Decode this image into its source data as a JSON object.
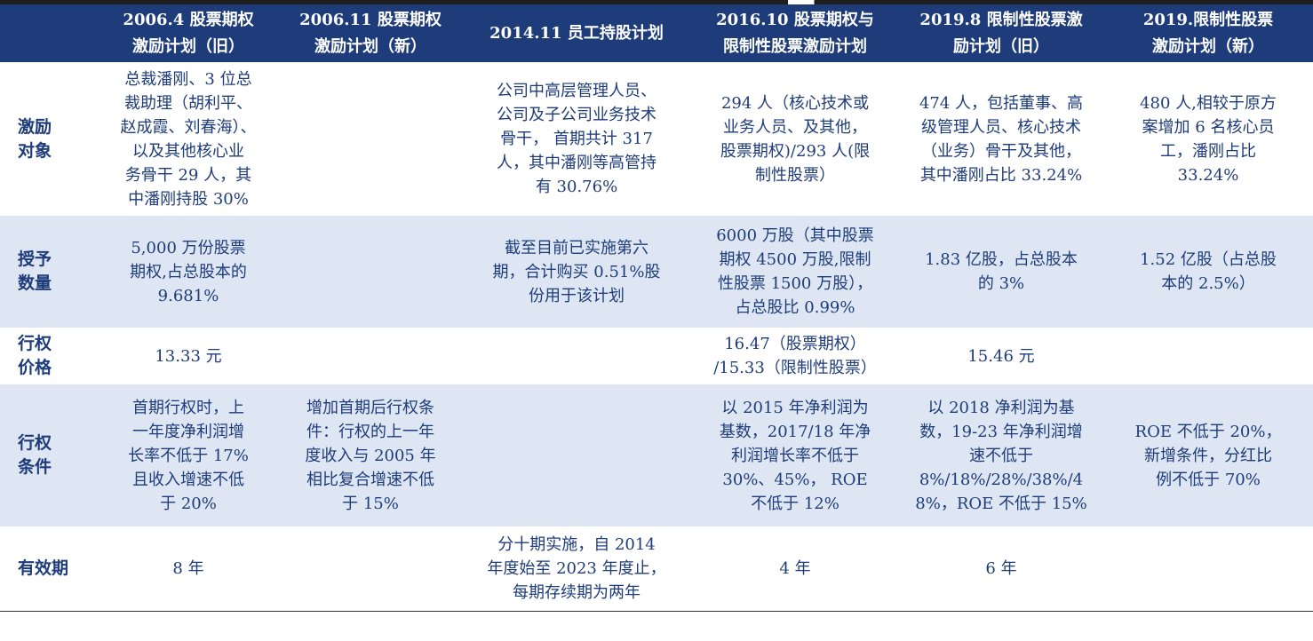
{
  "headers": [
    {
      "lines": [
        ""
      ]
    },
    {
      "lines": [
        "2006.4 股票期权",
        "激励计划（旧）"
      ]
    },
    {
      "lines": [
        "2006.11 股票期权",
        "激励计划（新）"
      ]
    },
    {
      "lines": [
        "2014.11 员工持股计划"
      ]
    },
    {
      "lines": [
        "2016.10 股票期权与",
        "限制性股票激励计划"
      ]
    },
    {
      "lines": [
        "2019.8 限制性股票激",
        "励计划（旧）"
      ]
    },
    {
      "lines": [
        "2019.限制性股票",
        "激励计划（新）"
      ]
    }
  ],
  "rows": [
    {
      "label": [
        "激励",
        "对象"
      ],
      "cells": [
        [
          "总裁潘刚、3 位总",
          "裁助理（胡利平、",
          "赵成霞、刘春海）、",
          "以及其他核心业",
          "务骨干 29 人，其",
          "中潘刚持股 30%"
        ],
        [],
        [
          "公司中高层管理人员、",
          "公司及子公司业务技术",
          "骨干，  首期共计 317",
          "人，其中潘刚等高管持",
          "有 30.76%"
        ],
        [
          "294 人（核心技术或",
          "业务人员、及其他，",
          "股票期权)/293 人(限",
          "制性股票）"
        ],
        [
          "474 人，包括董事、高",
          "级管理人员、核心技术",
          "（业务）骨干及其他，",
          "其中潘刚占比 33.24%"
        ],
        [
          "480 人,相较于原方",
          "案增加 6 名核心员",
          "工，潘刚占比",
          "33.24%"
        ]
      ]
    },
    {
      "label": [
        "授予",
        "数量"
      ],
      "cells": [
        [
          "5,000 万份股票",
          "期权,占总股本的",
          "9.681%"
        ],
        [],
        [
          "截至目前已实施第六",
          "期，合计购买 0.51%股",
          "份用于该计划"
        ],
        [
          "6000 万股（其中股票",
          "期权 4500 万股,限制",
          "性股票 1500 万股），",
          "占总股比 0.99%"
        ],
        [
          "1.83 亿股，占总股本",
          "的 3%"
        ],
        [
          "1.52 亿股（占总股",
          "本的 2.5%）"
        ]
      ]
    },
    {
      "label": [
        "行权",
        "价格"
      ],
      "cells": [
        [
          "13.33 元"
        ],
        [],
        [],
        [
          "16.47（股票期权）",
          "/15.33（限制性股票）"
        ],
        [
          "15.46 元"
        ],
        []
      ]
    },
    {
      "label": [
        "行权",
        "条件"
      ],
      "cells": [
        [
          "首期行权时，上",
          "一年度净利润增",
          "长率不低于 17%",
          "且收入增速不低",
          "于 20%"
        ],
        [
          "增加首期后行权条",
          "件：行权的上一年",
          "度收入与 2005 年",
          "相比复合增速不低",
          "于 15%"
        ],
        [],
        [
          "以 2015 年净利润为",
          "基数，2017/18 年净",
          "利润增长率不低于",
          "30%、45%， ROE",
          "不低于 12%"
        ],
        [
          "以 2018 净利润为基",
          "数，19-23 年净利润增",
          "速不低于",
          "8%/18%/28%/38%/4",
          "8%，ROE 不低于 15%"
        ],
        [
          "ROE 不低于 20%，",
          "新增条件，分红比",
          "例不低于 70%"
        ]
      ]
    },
    {
      "label": [
        "有效期"
      ],
      "cells": [
        [
          "8 年"
        ],
        [],
        [
          "分十期实施，自 2014",
          "年度始至 2023 年度止，",
          "每期存续期为两年"
        ],
        [
          "4 年"
        ],
        [
          "6 年"
        ],
        []
      ]
    }
  ]
}
